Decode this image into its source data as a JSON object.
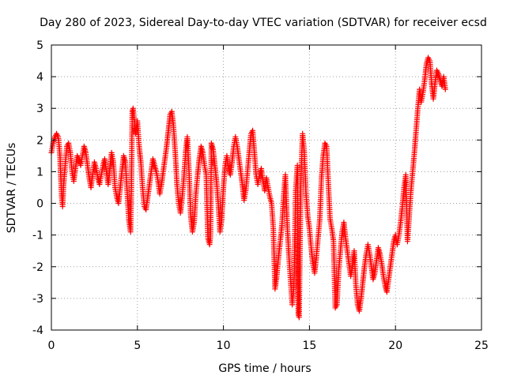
{
  "chart_data": {
    "type": "scatter",
    "title": "Day 280 of 2023, Sidereal Day-to-day VTEC variation (SDTVAR) for receiver ecsd",
    "xlabel": "GPS time / hours",
    "ylabel": "SDTVAR / TECUs",
    "xlim": [
      0,
      25
    ],
    "ylim": [
      -4,
      5
    ],
    "xticks": [
      0,
      5,
      10,
      15,
      20,
      25
    ],
    "yticks": [
      -4,
      -3,
      -2,
      -1,
      0,
      1,
      2,
      3,
      4,
      5
    ],
    "grid": true,
    "marker": "+",
    "color": "#ff0000",
    "series": [
      {
        "name": "SDTVAR",
        "points": [
          [
            0.0,
            1.6
          ],
          [
            0.1,
            1.9
          ],
          [
            0.2,
            2.1
          ],
          [
            0.3,
            2.2
          ],
          [
            0.4,
            2.1
          ],
          [
            0.5,
            1.5
          ],
          [
            0.55,
            0.8
          ],
          [
            0.6,
            0.2
          ],
          [
            0.65,
            -0.1
          ],
          [
            0.7,
            0.5
          ],
          [
            0.8,
            1.2
          ],
          [
            0.9,
            1.8
          ],
          [
            1.0,
            1.9
          ],
          [
            1.1,
            1.6
          ],
          [
            1.2,
            1.0
          ],
          [
            1.3,
            0.7
          ],
          [
            1.4,
            1.1
          ],
          [
            1.5,
            1.5
          ],
          [
            1.6,
            1.4
          ],
          [
            1.7,
            1.2
          ],
          [
            1.8,
            1.5
          ],
          [
            1.9,
            1.8
          ],
          [
            2.0,
            1.6
          ],
          [
            2.1,
            1.2
          ],
          [
            2.2,
            0.8
          ],
          [
            2.3,
            0.5
          ],
          [
            2.4,
            0.9
          ],
          [
            2.5,
            1.3
          ],
          [
            2.6,
            1.1
          ],
          [
            2.7,
            0.8
          ],
          [
            2.8,
            0.6
          ],
          [
            2.9,
            0.9
          ],
          [
            3.0,
            1.2
          ],
          [
            3.1,
            1.4
          ],
          [
            3.2,
            1.0
          ],
          [
            3.3,
            0.6
          ],
          [
            3.4,
            1.1
          ],
          [
            3.5,
            1.6
          ],
          [
            3.6,
            1.3
          ],
          [
            3.7,
            0.5
          ],
          [
            3.8,
            0.2
          ],
          [
            3.9,
            0.0
          ],
          [
            4.0,
            0.5
          ],
          [
            4.1,
            1.0
          ],
          [
            4.2,
            1.5
          ],
          [
            4.3,
            1.3
          ],
          [
            4.4,
            0.4
          ],
          [
            4.5,
            -0.5
          ],
          [
            4.6,
            -0.9
          ],
          [
            4.65,
            0.5
          ],
          [
            4.7,
            2.9
          ],
          [
            4.75,
            3.0
          ],
          [
            4.8,
            2.7
          ],
          [
            4.9,
            2.2
          ],
          [
            5.0,
            2.6
          ],
          [
            5.1,
            1.8
          ],
          [
            5.2,
            1.3
          ],
          [
            5.3,
            0.5
          ],
          [
            5.4,
            -0.1
          ],
          [
            5.5,
            -0.2
          ],
          [
            5.6,
            0.2
          ],
          [
            5.7,
            0.6
          ],
          [
            5.8,
            1.0
          ],
          [
            5.9,
            1.4
          ],
          [
            6.0,
            1.2
          ],
          [
            6.1,
            1.0
          ],
          [
            6.2,
            0.7
          ],
          [
            6.3,
            0.3
          ],
          [
            6.4,
            0.6
          ],
          [
            6.5,
            1.0
          ],
          [
            6.6,
            1.4
          ],
          [
            6.7,
            1.8
          ],
          [
            6.8,
            2.3
          ],
          [
            6.9,
            2.8
          ],
          [
            7.0,
            2.9
          ],
          [
            7.1,
            2.4
          ],
          [
            7.2,
            1.6
          ],
          [
            7.3,
            0.6
          ],
          [
            7.4,
            0.0
          ],
          [
            7.5,
            -0.3
          ],
          [
            7.6,
            0.2
          ],
          [
            7.7,
            0.8
          ],
          [
            7.8,
            1.6
          ],
          [
            7.9,
            2.1
          ],
          [
            8.0,
            1.0
          ],
          [
            8.1,
            -0.4
          ],
          [
            8.2,
            -0.9
          ],
          [
            8.3,
            -0.6
          ],
          [
            8.4,
            0.3
          ],
          [
            8.5,
            0.9
          ],
          [
            8.6,
            1.4
          ],
          [
            8.7,
            1.8
          ],
          [
            8.8,
            1.6
          ],
          [
            8.9,
            1.2
          ],
          [
            9.0,
            0.9
          ],
          [
            9.1,
            -1.1
          ],
          [
            9.2,
            -1.3
          ],
          [
            9.25,
            -1.0
          ],
          [
            9.3,
            1.9
          ],
          [
            9.4,
            1.7
          ],
          [
            9.5,
            1.2
          ],
          [
            9.6,
            0.7
          ],
          [
            9.7,
            0.0
          ],
          [
            9.8,
            -0.9
          ],
          [
            9.9,
            -0.5
          ],
          [
            10.0,
            0.5
          ],
          [
            10.1,
            1.2
          ],
          [
            10.2,
            1.5
          ],
          [
            10.3,
            1.1
          ],
          [
            10.4,
            0.9
          ],
          [
            10.5,
            1.3
          ],
          [
            10.6,
            1.8
          ],
          [
            10.7,
            2.1
          ],
          [
            10.8,
            1.8
          ],
          [
            10.9,
            1.4
          ],
          [
            11.0,
            1.0
          ],
          [
            11.1,
            0.6
          ],
          [
            11.2,
            0.1
          ],
          [
            11.3,
            0.4
          ],
          [
            11.4,
            1.0
          ],
          [
            11.5,
            1.6
          ],
          [
            11.6,
            2.2
          ],
          [
            11.7,
            2.3
          ],
          [
            11.8,
            1.6
          ],
          [
            11.9,
            0.9
          ],
          [
            12.0,
            0.6
          ],
          [
            12.1,
            0.9
          ],
          [
            12.2,
            1.1
          ],
          [
            12.3,
            0.7
          ],
          [
            12.4,
            0.4
          ],
          [
            12.5,
            0.8
          ],
          [
            12.6,
            0.5
          ],
          [
            12.7,
            0.2
          ],
          [
            12.8,
            0.0
          ],
          [
            12.9,
            -0.8
          ],
          [
            13.0,
            -2.7
          ],
          [
            13.1,
            -2.3
          ],
          [
            13.2,
            -1.7
          ],
          [
            13.3,
            -1.2
          ],
          [
            13.4,
            -0.7
          ],
          [
            13.5,
            0.2
          ],
          [
            13.6,
            0.9
          ],
          [
            13.7,
            -0.6
          ],
          [
            13.8,
            -1.6
          ],
          [
            13.9,
            -2.4
          ],
          [
            14.0,
            -3.2
          ],
          [
            14.1,
            -2.6
          ],
          [
            14.2,
            0.4
          ],
          [
            14.3,
            1.2
          ],
          [
            14.35,
            -3.5
          ],
          [
            14.4,
            -3.6
          ],
          [
            14.5,
            0.7
          ],
          [
            14.6,
            2.2
          ],
          [
            14.7,
            1.6
          ],
          [
            14.8,
            0.3
          ],
          [
            14.9,
            -0.4
          ],
          [
            15.0,
            -0.8
          ],
          [
            15.1,
            -1.4
          ],
          [
            15.2,
            -1.9
          ],
          [
            15.3,
            -2.2
          ],
          [
            15.4,
            -1.7
          ],
          [
            15.5,
            -1.1
          ],
          [
            15.6,
            -0.5
          ],
          [
            15.7,
            0.8
          ],
          [
            15.8,
            1.5
          ],
          [
            15.9,
            1.9
          ],
          [
            16.0,
            1.8
          ],
          [
            16.1,
            0.6
          ],
          [
            16.2,
            -0.5
          ],
          [
            16.3,
            -0.8
          ],
          [
            16.4,
            -1.2
          ],
          [
            16.5,
            -3.3
          ],
          [
            16.6,
            -3.2
          ],
          [
            16.7,
            -2.1
          ],
          [
            16.8,
            -1.5
          ],
          [
            16.9,
            -0.9
          ],
          [
            17.0,
            -0.6
          ],
          [
            17.1,
            -1.1
          ],
          [
            17.2,
            -1.5
          ],
          [
            17.3,
            -1.9
          ],
          [
            17.4,
            -2.3
          ],
          [
            17.5,
            -2.0
          ],
          [
            17.6,
            -1.5
          ],
          [
            17.7,
            -2.6
          ],
          [
            17.8,
            -3.2
          ],
          [
            17.9,
            -3.4
          ],
          [
            18.0,
            -3.0
          ],
          [
            18.1,
            -2.5
          ],
          [
            18.2,
            -2.0
          ],
          [
            18.3,
            -1.6
          ],
          [
            18.4,
            -1.3
          ],
          [
            18.5,
            -1.6
          ],
          [
            18.6,
            -2.0
          ],
          [
            18.7,
            -2.4
          ],
          [
            18.8,
            -2.2
          ],
          [
            18.9,
            -1.8
          ],
          [
            19.0,
            -1.4
          ],
          [
            19.1,
            -1.6
          ],
          [
            19.2,
            -1.9
          ],
          [
            19.3,
            -2.3
          ],
          [
            19.4,
            -2.6
          ],
          [
            19.5,
            -2.8
          ],
          [
            19.6,
            -2.4
          ],
          [
            19.7,
            -2.0
          ],
          [
            19.8,
            -1.6
          ],
          [
            19.9,
            -1.2
          ],
          [
            20.0,
            -1.0
          ],
          [
            20.1,
            -1.3
          ],
          [
            20.2,
            -1.0
          ],
          [
            20.3,
            -0.6
          ],
          [
            20.4,
            -0.1
          ],
          [
            20.5,
            0.5
          ],
          [
            20.6,
            0.9
          ],
          [
            20.7,
            -1.2
          ],
          [
            20.8,
            -0.4
          ],
          [
            20.9,
            0.4
          ],
          [
            21.0,
            1.0
          ],
          [
            21.1,
            1.6
          ],
          [
            21.2,
            2.3
          ],
          [
            21.3,
            3.0
          ],
          [
            21.4,
            3.6
          ],
          [
            21.5,
            3.2
          ],
          [
            21.6,
            3.5
          ],
          [
            21.7,
            3.9
          ],
          [
            21.8,
            4.4
          ],
          [
            21.9,
            4.6
          ],
          [
            22.0,
            4.5
          ],
          [
            22.1,
            3.8
          ],
          [
            22.2,
            3.3
          ],
          [
            22.3,
            3.8
          ],
          [
            22.4,
            4.2
          ],
          [
            22.5,
            4.1
          ],
          [
            22.6,
            3.9
          ],
          [
            22.7,
            3.7
          ],
          [
            22.8,
            4.0
          ],
          [
            22.9,
            3.6
          ]
        ]
      }
    ]
  }
}
